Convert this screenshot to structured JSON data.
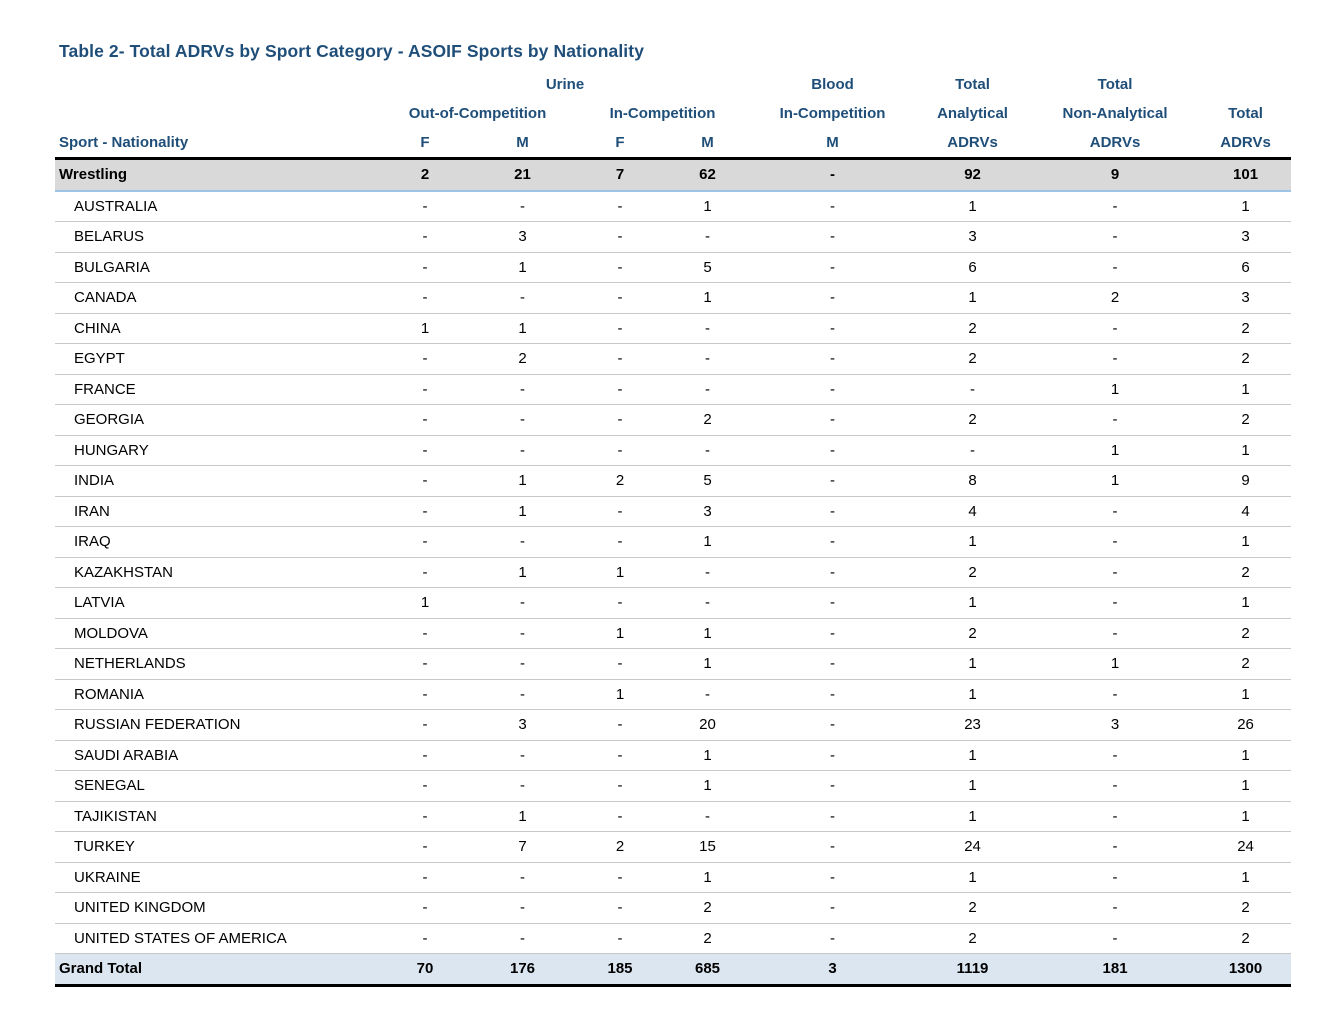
{
  "title": "Table 2- Total ADRVs by Sport Category - ASOIF Sports by Nationality",
  "colors": {
    "heading_text": "#1F4E79",
    "sport_row_bg": "#D9D9D9",
    "sport_row_underline": "#9DC3E6",
    "grand_total_row_bg": "#DCE6F1",
    "row_divider": "#C9C9C9",
    "strong_border": "#000000"
  },
  "table": {
    "header": {
      "group": {
        "urine": "Urine",
        "blood": "Blood",
        "total_analytical": "Total",
        "total_non_analytical": "Total"
      },
      "sub": {
        "out_of_competition": "Out-of-Competition",
        "in_competition": "In-Competition",
        "blood_in_competition": "In-Competition",
        "analytical": "Analytical",
        "non_analytical": "Non-Analytical",
        "total": "Total"
      },
      "cols": [
        "Sport - Nationality",
        "F",
        "M",
        "F",
        "M",
        "M",
        "ADRVs",
        "ADRVs",
        "ADRVs"
      ]
    },
    "rows": [
      {
        "type": "sport",
        "label": "Wrestling",
        "values": [
          "2",
          "21",
          "7",
          "62",
          "-",
          "92",
          "9",
          "101"
        ]
      },
      {
        "type": "country",
        "label": "AUSTRALIA",
        "values": [
          "-",
          "-",
          "-",
          "1",
          "-",
          "1",
          "-",
          "1"
        ]
      },
      {
        "type": "country",
        "label": "BELARUS",
        "values": [
          "-",
          "3",
          "-",
          "-",
          "-",
          "3",
          "-",
          "3"
        ]
      },
      {
        "type": "country",
        "label": "BULGARIA",
        "values": [
          "-",
          "1",
          "-",
          "5",
          "-",
          "6",
          "-",
          "6"
        ]
      },
      {
        "type": "country",
        "label": "CANADA",
        "values": [
          "-",
          "-",
          "-",
          "1",
          "-",
          "1",
          "2",
          "3"
        ]
      },
      {
        "type": "country",
        "label": "CHINA",
        "values": [
          "1",
          "1",
          "-",
          "-",
          "-",
          "2",
          "-",
          "2"
        ]
      },
      {
        "type": "country",
        "label": "EGYPT",
        "values": [
          "-",
          "2",
          "-",
          "-",
          "-",
          "2",
          "-",
          "2"
        ]
      },
      {
        "type": "country",
        "label": "FRANCE",
        "values": [
          "-",
          "-",
          "-",
          "-",
          "-",
          "-",
          "1",
          "1"
        ]
      },
      {
        "type": "country",
        "label": "GEORGIA",
        "values": [
          "-",
          "-",
          "-",
          "2",
          "-",
          "2",
          "-",
          "2"
        ]
      },
      {
        "type": "country",
        "label": "HUNGARY",
        "values": [
          "-",
          "-",
          "-",
          "-",
          "-",
          "-",
          "1",
          "1"
        ]
      },
      {
        "type": "country",
        "label": "INDIA",
        "values": [
          "-",
          "1",
          "2",
          "5",
          "-",
          "8",
          "1",
          "9"
        ]
      },
      {
        "type": "country",
        "label": "IRAN",
        "values": [
          "-",
          "1",
          "-",
          "3",
          "-",
          "4",
          "-",
          "4"
        ]
      },
      {
        "type": "country",
        "label": "IRAQ",
        "values": [
          "-",
          "-",
          "-",
          "1",
          "-",
          "1",
          "-",
          "1"
        ]
      },
      {
        "type": "country",
        "label": "KAZAKHSTAN",
        "values": [
          "-",
          "1",
          "1",
          "-",
          "-",
          "2",
          "-",
          "2"
        ]
      },
      {
        "type": "country",
        "label": "LATVIA",
        "values": [
          "1",
          "-",
          "-",
          "-",
          "-",
          "1",
          "-",
          "1"
        ]
      },
      {
        "type": "country",
        "label": "MOLDOVA",
        "values": [
          "-",
          "-",
          "1",
          "1",
          "-",
          "2",
          "-",
          "2"
        ]
      },
      {
        "type": "country",
        "label": "NETHERLANDS",
        "values": [
          "-",
          "-",
          "-",
          "1",
          "-",
          "1",
          "1",
          "2"
        ]
      },
      {
        "type": "country",
        "label": "ROMANIA",
        "values": [
          "-",
          "-",
          "1",
          "-",
          "-",
          "1",
          "-",
          "1"
        ]
      },
      {
        "type": "country",
        "label": "RUSSIAN FEDERATION",
        "values": [
          "-",
          "3",
          "-",
          "20",
          "-",
          "23",
          "3",
          "26"
        ]
      },
      {
        "type": "country",
        "label": "SAUDI ARABIA",
        "values": [
          "-",
          "-",
          "-",
          "1",
          "-",
          "1",
          "-",
          "1"
        ]
      },
      {
        "type": "country",
        "label": "SENEGAL",
        "values": [
          "-",
          "-",
          "-",
          "1",
          "-",
          "1",
          "-",
          "1"
        ]
      },
      {
        "type": "country",
        "label": "TAJIKISTAN",
        "values": [
          "-",
          "1",
          "-",
          "-",
          "-",
          "1",
          "-",
          "1"
        ]
      },
      {
        "type": "country",
        "label": "TURKEY",
        "values": [
          "-",
          "7",
          "2",
          "15",
          "-",
          "24",
          "-",
          "24"
        ]
      },
      {
        "type": "country",
        "label": "UKRAINE",
        "values": [
          "-",
          "-",
          "-",
          "1",
          "-",
          "1",
          "-",
          "1"
        ]
      },
      {
        "type": "country",
        "label": "UNITED KINGDOM",
        "values": [
          "-",
          "-",
          "-",
          "2",
          "-",
          "2",
          "-",
          "2"
        ]
      },
      {
        "type": "country",
        "label": "UNITED STATES OF AMERICA",
        "values": [
          "-",
          "-",
          "-",
          "2",
          "-",
          "2",
          "-",
          "2"
        ]
      },
      {
        "type": "grand_total",
        "label": "Grand Total",
        "values": [
          "70",
          "176",
          "185",
          "685",
          "3",
          "1119",
          "181",
          "1300"
        ]
      }
    ]
  }
}
